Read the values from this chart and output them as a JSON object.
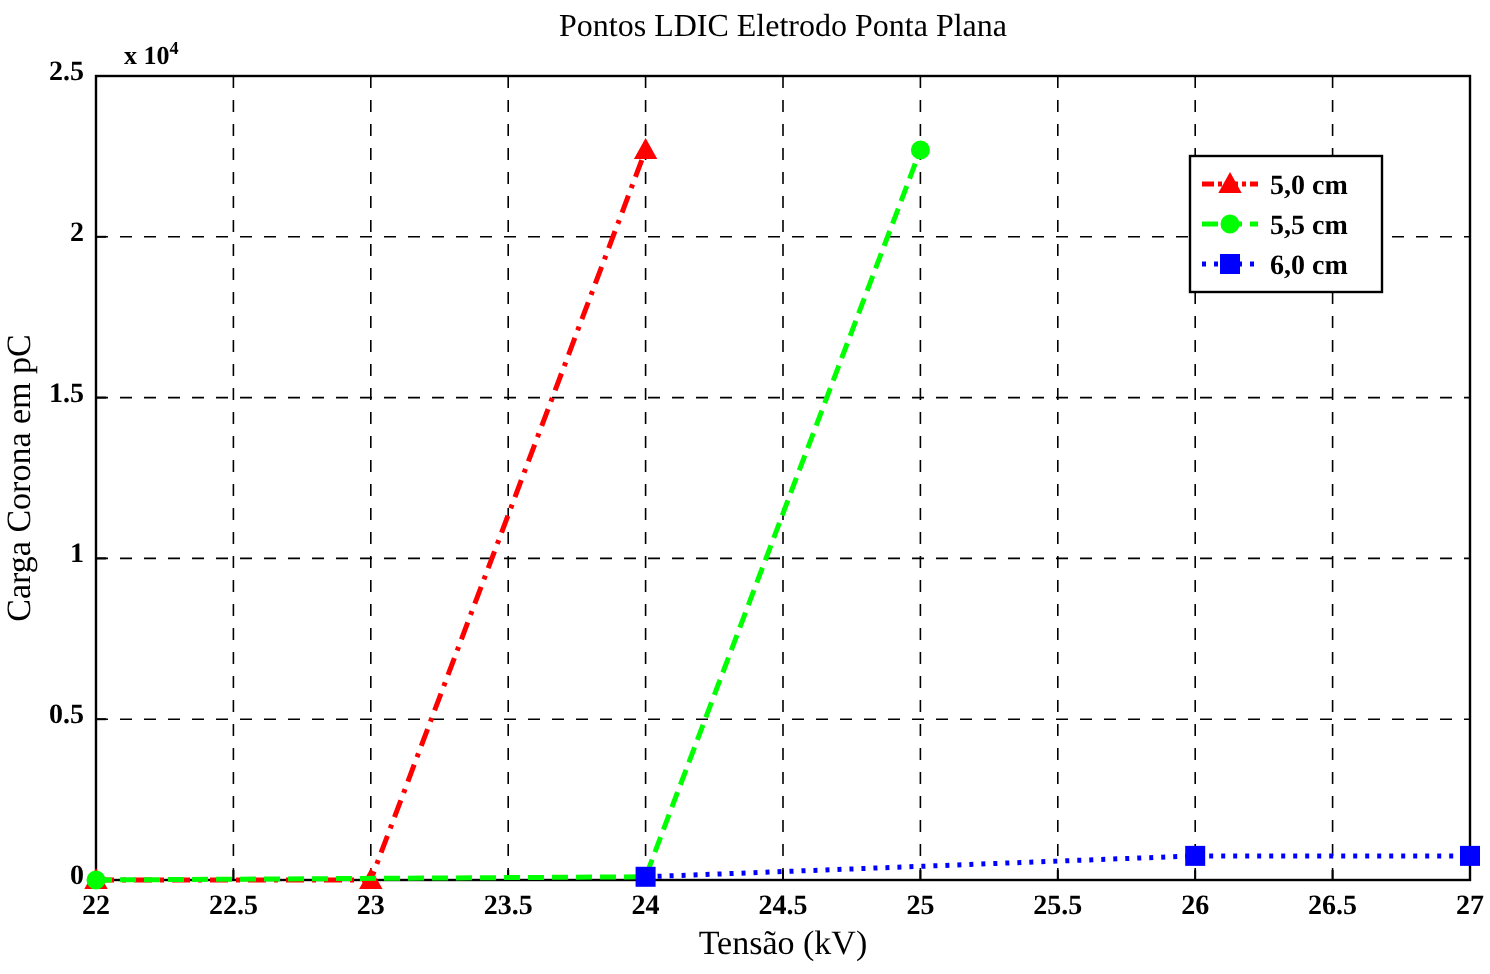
{
  "chart_data": {
    "type": "line",
    "title": "Pontos LDIC Eletrodo Ponta Plana",
    "xlabel": "Tensão (kV)",
    "ylabel": "Carga Corona em pC",
    "annotations": [
      "x 10$^{4}$"
    ],
    "xlim": [
      22,
      27
    ],
    "xticks": [
      22,
      22.5,
      23,
      23.5,
      24,
      24.5,
      25,
      25.5,
      26,
      26.5,
      27
    ],
    "ylim": [
      0,
      2.5
    ],
    "yticks": [
      0,
      0.5,
      1,
      1.5,
      2,
      2.5
    ],
    "grid": true,
    "legend": "top right",
    "series": [
      {
        "name": "5,0 cm",
        "color": "#ff0000",
        "x": [
          22,
          23,
          24
        ],
        "values": [
          0,
          0,
          2.27
        ],
        "marker": "triangle",
        "line_style": "dashdot"
      },
      {
        "name": "5,5 cm",
        "color": "#00ff00",
        "x": [
          22,
          24,
          25
        ],
        "values": [
          0,
          0.01,
          2.27
        ],
        "marker": "circle",
        "line_style": "dashed"
      },
      {
        "name": "6,0 cm",
        "color": "#0000ff",
        "x": [
          24,
          26,
          27
        ],
        "values": [
          0.01,
          0.075,
          0.075
        ],
        "marker": "square",
        "line_style": "dotted"
      }
    ]
  }
}
